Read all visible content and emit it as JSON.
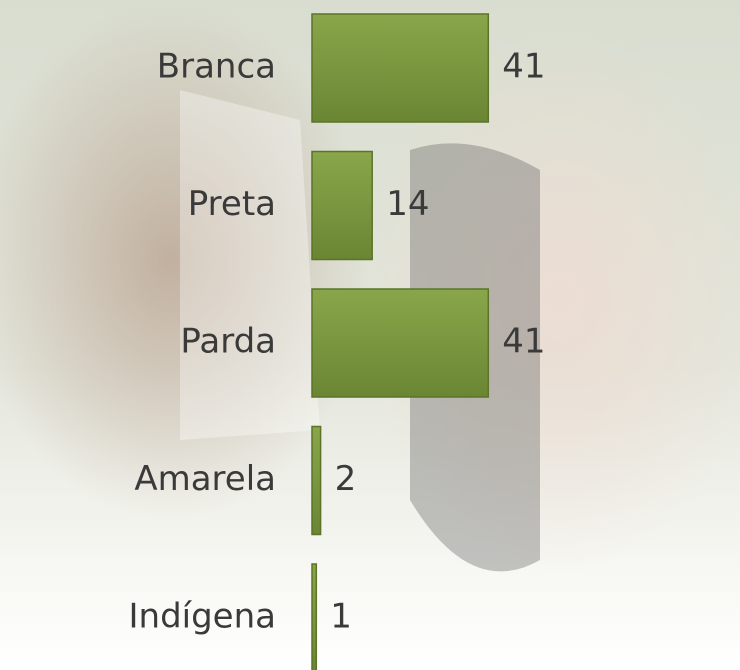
{
  "chart_data": {
    "type": "bar",
    "orientation": "horizontal",
    "categories": [
      "Branca",
      "Preta",
      "Parda",
      "Amarela",
      "Indígena"
    ],
    "values": [
      41,
      14,
      41,
      2,
      1
    ],
    "color": "#77933c"
  }
}
